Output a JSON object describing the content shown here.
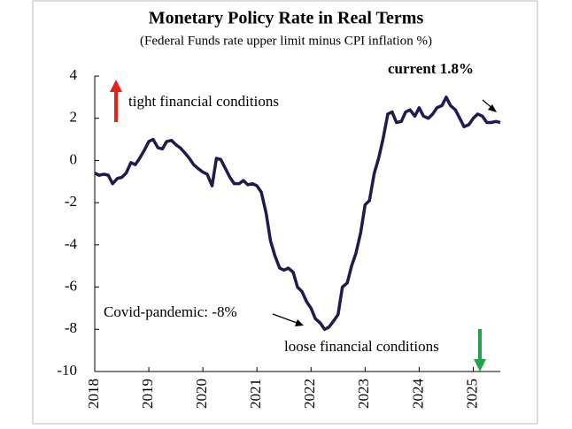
{
  "chart_data": {
    "type": "line",
    "title": "Monetary Policy Rate in Real Terms",
    "subtitle": "(Federal Funds rate upper limit minus CPI inflation %)",
    "annotations": {
      "tight": "tight financial conditions",
      "loose": "loose financial conditions",
      "current": "current 1.8%",
      "covid": "Covid-pandemic: -8%"
    },
    "color": "#1f1b4d",
    "x": [
      2018.0,
      2018.08,
      2018.17,
      2018.25,
      2018.33,
      2018.42,
      2018.5,
      2018.58,
      2018.67,
      2018.75,
      2018.83,
      2018.92,
      2019.0,
      2019.08,
      2019.17,
      2019.25,
      2019.33,
      2019.42,
      2019.5,
      2019.58,
      2019.67,
      2019.75,
      2019.83,
      2019.92,
      2020.0,
      2020.08,
      2020.17,
      2020.25,
      2020.33,
      2020.42,
      2020.5,
      2020.58,
      2020.67,
      2020.75,
      2020.83,
      2020.92,
      2021.0,
      2021.08,
      2021.17,
      2021.25,
      2021.33,
      2021.42,
      2021.5,
      2021.58,
      2021.67,
      2021.75,
      2021.83,
      2021.92,
      2022.0,
      2022.08,
      2022.17,
      2022.25,
      2022.33,
      2022.42,
      2022.5,
      2022.58,
      2022.67,
      2022.75,
      2022.83,
      2022.92,
      2023.0,
      2023.08,
      2023.17,
      2023.25,
      2023.33,
      2023.42,
      2023.5,
      2023.58,
      2023.67,
      2023.75,
      2023.83,
      2023.92,
      2024.0,
      2024.08,
      2024.17,
      2024.25,
      2024.33,
      2024.42,
      2024.5,
      2024.58,
      2024.67,
      2024.75,
      2024.83,
      2024.92,
      2025.0,
      2025.08,
      2025.17,
      2025.25,
      2025.33,
      2025.42,
      2025.5
    ],
    "values": [
      -0.6,
      -0.7,
      -0.65,
      -0.7,
      -1.1,
      -0.85,
      -0.8,
      -0.6,
      -0.1,
      -0.2,
      0.1,
      0.5,
      0.9,
      1.0,
      0.6,
      0.55,
      0.9,
      0.95,
      0.75,
      0.6,
      0.35,
      0.1,
      -0.2,
      -0.4,
      -0.55,
      -0.65,
      -1.2,
      0.1,
      0.05,
      -0.4,
      -0.8,
      -1.1,
      -1.1,
      -0.95,
      -1.15,
      -1.1,
      -1.2,
      -1.5,
      -2.5,
      -3.8,
      -4.5,
      -5.1,
      -5.2,
      -5.1,
      -5.3,
      -6.0,
      -6.2,
      -6.7,
      -7.0,
      -7.5,
      -7.7,
      -8.0,
      -7.9,
      -7.6,
      -7.3,
      -6.0,
      -5.8,
      -5.0,
      -4.4,
      -3.4,
      -2.1,
      -1.9,
      -0.6,
      0.1,
      1.0,
      2.2,
      2.3,
      1.8,
      1.85,
      2.3,
      2.4,
      2.1,
      2.5,
      2.1,
      2.0,
      2.2,
      2.5,
      2.6,
      3.0,
      2.6,
      2.4,
      2.0,
      1.6,
      1.7,
      2.0,
      2.2,
      2.1,
      1.8,
      1.8,
      1.85,
      1.8
    ],
    "xlim": [
      2018,
      2025.5
    ],
    "xticks": [
      2018,
      2019,
      2020,
      2021,
      2022,
      2023,
      2024,
      2025
    ],
    "ylim": [
      -10,
      4
    ],
    "yticks": [
      -10,
      -8,
      -6,
      -4,
      -2,
      0,
      2,
      4
    ]
  }
}
